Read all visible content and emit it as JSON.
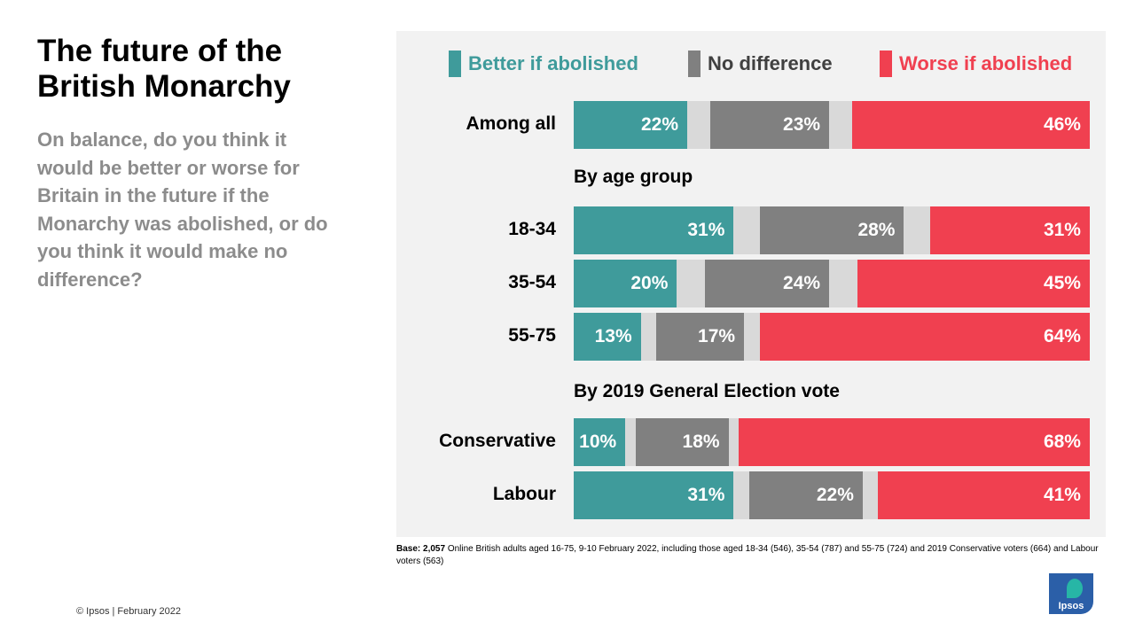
{
  "page": {
    "title": "The future of the British Monarchy",
    "question": "On balance, do you think it would be better or worse for Britain in the future if the Monarchy was abolished, or do you think it would make no difference?",
    "base_label": "Base: 2,057",
    "base_text": " Online British adults aged 16-75, 9-10 February 2022, including those aged 18-34 (546), 35-54 (787) and 55-75 (724) and 2019 Conservative voters (664) and Labour voters (563)",
    "footer": "© Ipsos | February 2022",
    "logo_text": "Ipsos"
  },
  "colors": {
    "better": "#3f9b9b",
    "no_difference": "#808080",
    "worse": "#f04050",
    "neutral_gap": "#d9d9d9",
    "panel_bg": "#f2f2f2"
  },
  "chart_data": {
    "type": "bar",
    "orientation": "horizontal-stacked",
    "legend": [
      {
        "name": "Better if abolished",
        "color": "#3f9b9b"
      },
      {
        "name": "No difference",
        "color": "#808080"
      },
      {
        "name": "Worse if abolished",
        "color": "#f04050"
      }
    ],
    "sections": [
      {
        "heading": "By age group"
      },
      {
        "heading": "By 2019 General Election vote"
      }
    ],
    "categories": [
      "Among all",
      "18-34",
      "35-54",
      "55-75",
      "Conservative",
      "Labour"
    ],
    "series": [
      {
        "name": "Better if abolished",
        "values": [
          22,
          31,
          20,
          13,
          10,
          31
        ],
        "labels": [
          "22%",
          "31%",
          "20%",
          "13%",
          "10%",
          "31%"
        ]
      },
      {
        "name": "No difference",
        "values": [
          23,
          28,
          24,
          17,
          18,
          22
        ],
        "labels": [
          "23%",
          "28%",
          "24%",
          "17%",
          "18%",
          "22%"
        ]
      },
      {
        "name": "Worse if abolished",
        "values": [
          46,
          31,
          45,
          64,
          68,
          41
        ],
        "labels": [
          "46%",
          "31%",
          "45%",
          "64%",
          "68%",
          "41%"
        ]
      }
    ],
    "xlim": [
      0,
      100
    ]
  }
}
